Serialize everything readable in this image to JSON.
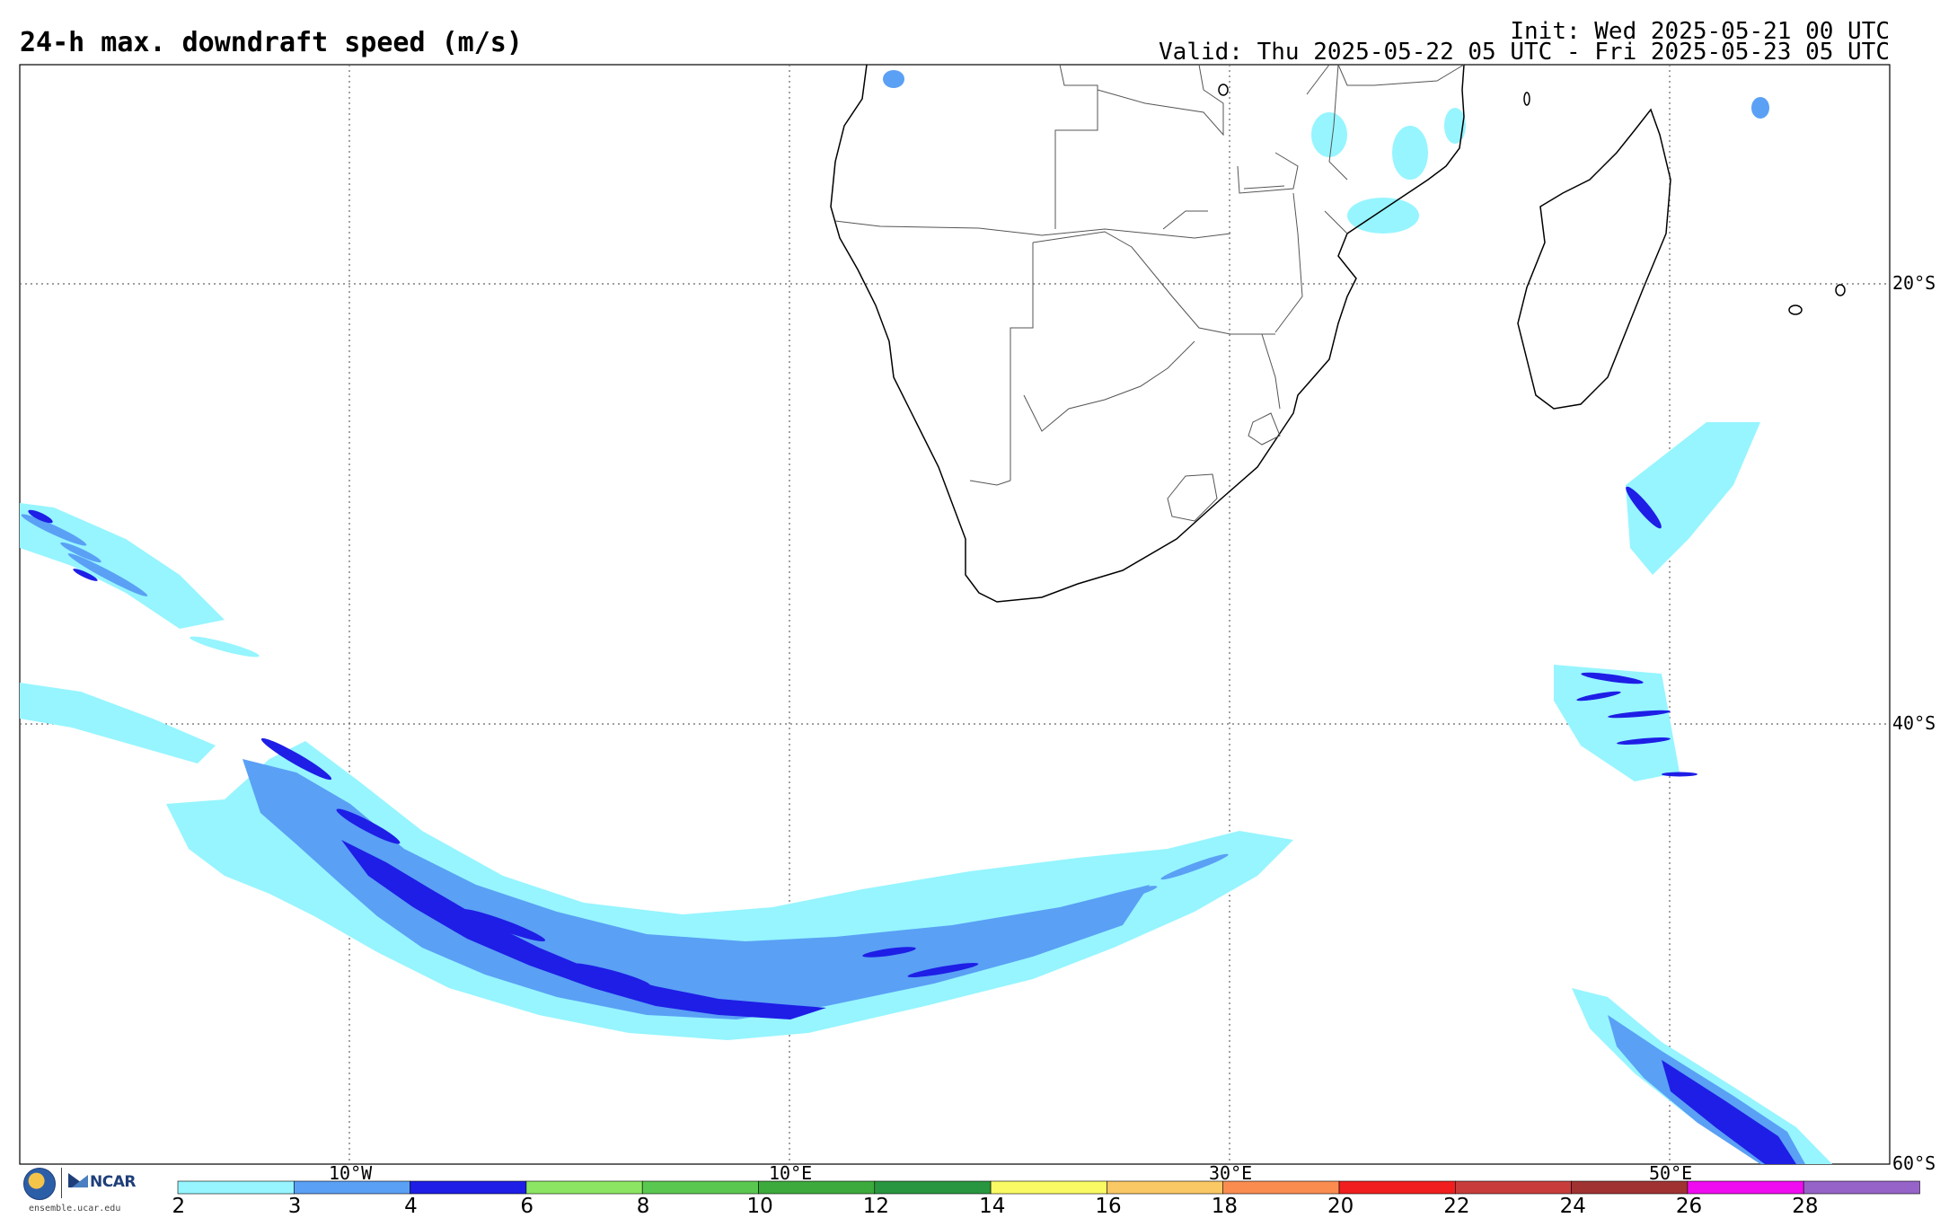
{
  "header": {
    "title": "24-h max. downdraft speed (m/s)",
    "init": "Init: Wed 2025-05-21 00 UTC",
    "valid": "Valid: Thu 2025-05-22 05 UTC - Fri 2025-05-23 05 UTC"
  },
  "map": {
    "lat_labels": [
      "20°S",
      "40°S",
      "60°S"
    ],
    "lon_labels": [
      "10°W",
      "10°E",
      "30°E",
      "50°E"
    ],
    "extent": {
      "lon_min": -25,
      "lon_max": 60,
      "lat_min": -60,
      "lat_max": -10
    }
  },
  "colorbar": {
    "ticks": [
      "2",
      "3",
      "4",
      "6",
      "8",
      "10",
      "12",
      "14",
      "16",
      "18",
      "20",
      "22",
      "24",
      "26",
      "28"
    ],
    "colors": [
      "#96f5ff",
      "#5aa0f5",
      "#1e1ee6",
      "#8ce664",
      "#5ac850",
      "#3caa3c",
      "#289640",
      "#fafa64",
      "#fac864",
      "#fa8c50",
      "#f01e1e",
      "#c83c3c",
      "#a03232",
      "#f00cf0",
      "#9664c8"
    ]
  },
  "logos": {
    "nsf": "NSF",
    "ncar": "NCAR",
    "site": "ensemble.ucar.edu"
  }
}
